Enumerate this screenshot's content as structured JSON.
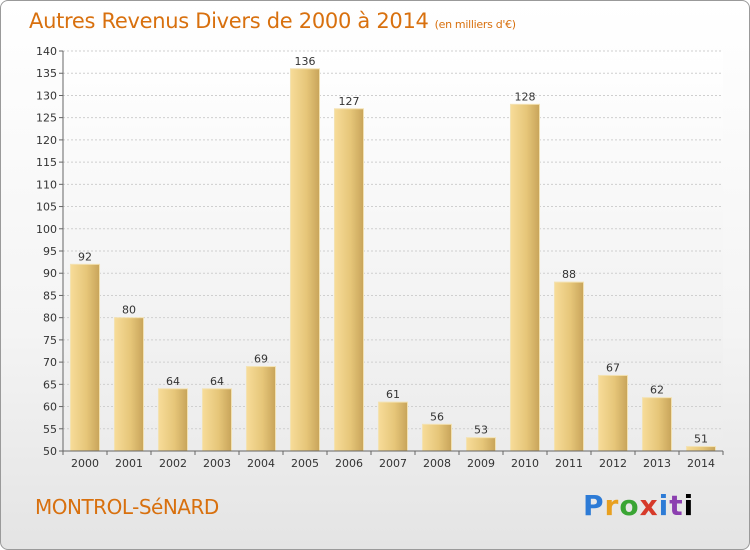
{
  "header": {
    "title": "Autres Revenus Divers de 2000 à 2014",
    "subtitle": "(en milliers d'€)"
  },
  "footer": {
    "commune": "MONTROL-SéNARD",
    "logo": "Proxiti"
  },
  "chart_data": {
    "type": "bar",
    "title": "Autres Revenus Divers de 2000 à 2014",
    "subtitle": "(en milliers d'€)",
    "categories": [
      "2000",
      "2001",
      "2002",
      "2003",
      "2004",
      "2005",
      "2006",
      "2007",
      "2008",
      "2009",
      "2010",
      "2011",
      "2012",
      "2013",
      "2014"
    ],
    "values": [
      92,
      80,
      64,
      64,
      69,
      136,
      127,
      61,
      56,
      53,
      128,
      88,
      67,
      62,
      51
    ],
    "ylim": [
      50,
      140
    ],
    "yticks": [
      50,
      55,
      60,
      65,
      70,
      75,
      80,
      85,
      90,
      95,
      100,
      105,
      110,
      115,
      120,
      125,
      130,
      135,
      140
    ],
    "grid": true,
    "bar_color": "#e8c87a",
    "legend": "none"
  }
}
